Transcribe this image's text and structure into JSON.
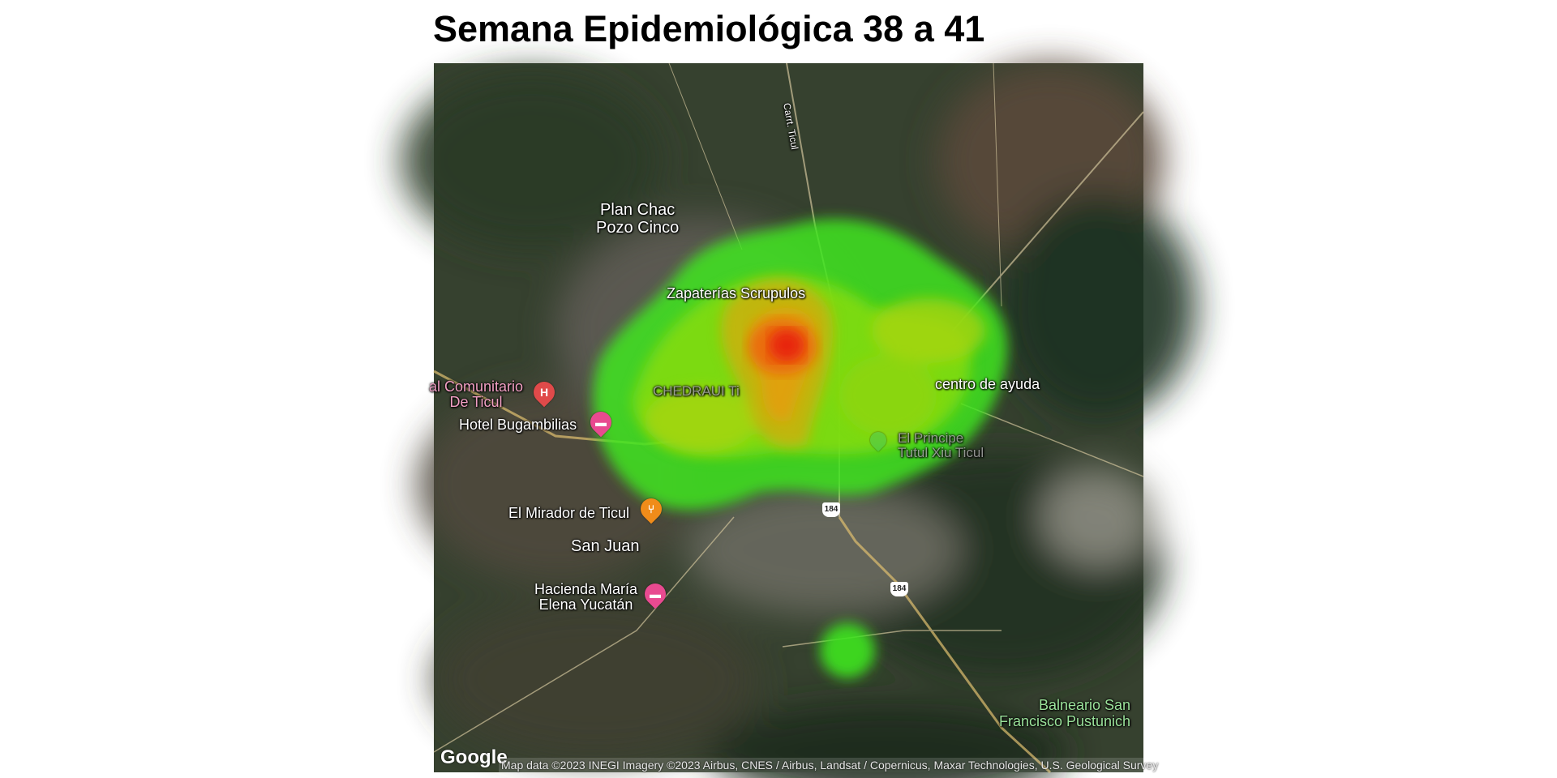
{
  "title": "Semana Epidemiológica 38 a 41",
  "map": {
    "labels": {
      "plan_chac": "Plan Chac\nPozo Cinco",
      "zapaterias": "Zapaterías Scrupulos",
      "comunitario": "al Comunitario\nDe Ticul",
      "hotel": "Hotel Bugambilias",
      "chedraui": "CHEDRAUI Ti",
      "centro": "centro de ayuda",
      "principe": "El Principe\nTutul Xiu Ticul",
      "mirador": "El Mirador de Ticul",
      "san_juan": "San Juan",
      "hacienda": "Hacienda María\nElena Yucatán",
      "balneario": "Balneario San\nFrancisco Pustunich",
      "carretera": "Carrt. Ticul"
    },
    "road_shields": [
      "184",
      "184"
    ],
    "icons": [
      "hospital-pin-icon",
      "hotel-pin-icon",
      "restaurant-pin-icon",
      "hotel-pin-icon",
      "place-pin-icon"
    ],
    "heatmap_colors": {
      "low": "#3ee61e",
      "mid": "#a8d40c",
      "high": "#e0a010",
      "peak": "#e8200e"
    },
    "google_logo": "Google",
    "attribution": "Map data ©2023 INEGI Imagery ©2023 Airbus, CNES / Airbus, Landsat / Copernicus, Maxar Technologies, U.S. Geological Survey"
  }
}
